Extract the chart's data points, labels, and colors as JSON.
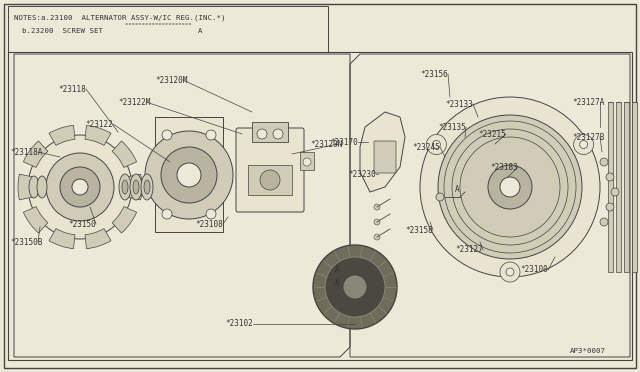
{
  "bg_color": "#ede9d8",
  "line_color": "#444444",
  "text_color": "#333333",
  "fill_light": "#e8e4d0",
  "fill_mid": "#d0ccb8",
  "fill_dark": "#b8b4a0",
  "title_line1": "NOTES:a.23100  ALTERNATOR ASSY-W/IC REG.(INC.*)",
  "title_line2": "b.23200  SCREW SET",
  "footer": "AP3*0007",
  "label_fs": 5.5,
  "border_lw": 1.0,
  "comp_lw": 0.7
}
